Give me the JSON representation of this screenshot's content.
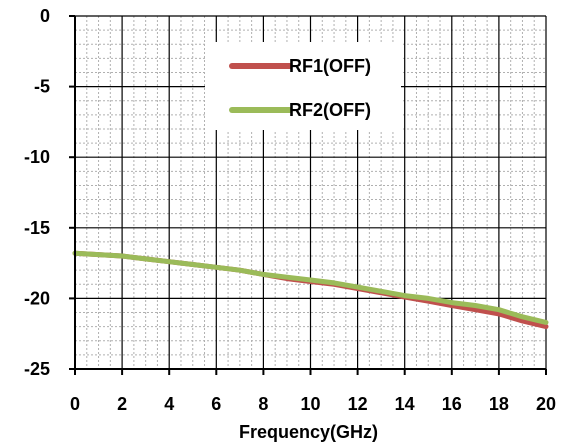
{
  "chart_data": {
    "type": "line",
    "title": "",
    "xlabel": "Frequency(GHz)",
    "ylabel": "",
    "xlim": [
      0,
      20
    ],
    "ylim": [
      -25,
      0
    ],
    "x_ticks": [
      "0",
      "2",
      "4",
      "6",
      "8",
      "10",
      "12",
      "14",
      "16",
      "18",
      "20"
    ],
    "y_ticks": [
      "0",
      "-5",
      "-10",
      "-15",
      "-20",
      "-25"
    ],
    "grid": true,
    "legend_position": "top-right",
    "series": [
      {
        "name": "RF1(OFF)",
        "color": "#c0504d",
        "x": [
          0,
          1,
          2,
          3,
          4,
          5,
          6,
          7,
          8,
          9,
          10,
          11,
          12,
          13,
          14,
          15,
          16,
          17,
          18,
          19,
          20
        ],
        "y": [
          -16.8,
          -16.9,
          -17.0,
          -17.2,
          -17.4,
          -17.6,
          -17.8,
          -18.0,
          -18.3,
          -18.6,
          -18.8,
          -19.0,
          -19.3,
          -19.6,
          -19.9,
          -20.2,
          -20.5,
          -20.8,
          -21.1,
          -21.6,
          -22.0
        ]
      },
      {
        "name": "RF2(OFF)",
        "color": "#9bbb59",
        "x": [
          0,
          1,
          2,
          3,
          4,
          5,
          6,
          7,
          8,
          9,
          10,
          11,
          12,
          13,
          14,
          15,
          16,
          17,
          18,
          19,
          20
        ],
        "y": [
          -16.8,
          -16.9,
          -17.0,
          -17.2,
          -17.4,
          -17.6,
          -17.8,
          -18.0,
          -18.3,
          -18.5,
          -18.7,
          -18.9,
          -19.2,
          -19.5,
          -19.8,
          -20.0,
          -20.3,
          -20.5,
          -20.8,
          -21.3,
          -21.7
        ]
      }
    ]
  }
}
